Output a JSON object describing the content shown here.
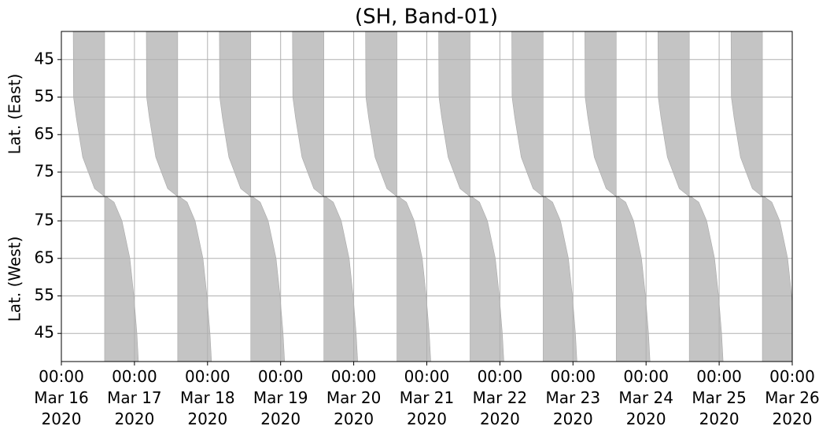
{
  "chart_data": {
    "type": "area",
    "title": "(SH, Band-01)",
    "color": "#c4c4c4",
    "grid": true,
    "xlim": [
      "2020-03-16T00:00",
      "2020-03-26T00:00"
    ],
    "xticks": [
      {
        "value": "2020-03-16T00:00",
        "label": "00:00\nMar 16\n2020"
      },
      {
        "value": "2020-03-17T00:00",
        "label": "00:00\nMar 17\n2020"
      },
      {
        "value": "2020-03-18T00:00",
        "label": "00:00\nMar 18\n2020"
      },
      {
        "value": "2020-03-19T00:00",
        "label": "00:00\nMar 19\n2020"
      },
      {
        "value": "2020-03-20T00:00",
        "label": "00:00\nMar 20\n2020"
      },
      {
        "value": "2020-03-21T00:00",
        "label": "00:00\nMar 21\n2020"
      },
      {
        "value": "2020-03-22T00:00",
        "label": "00:00\nMar 22\n2020"
      },
      {
        "value": "2020-03-23T00:00",
        "label": "00:00\nMar 23\n2020"
      },
      {
        "value": "2020-03-24T00:00",
        "label": "00:00\nMar 24\n2020"
      },
      {
        "value": "2020-03-25T00:00",
        "label": "00:00\nMar 25\n2020"
      },
      {
        "value": "2020-03-26T00:00",
        "label": "00:00\nMar 26\n2020"
      }
    ],
    "panels": [
      {
        "ylabel": "Lat. (East)",
        "ylim": [
          37.5,
          81.5
        ],
        "yticks": [
          45,
          55,
          65,
          75
        ],
        "hours": [
          3.9,
          4.0,
          4.9,
          7.0,
          10.9,
          13.4,
          14.2,
          14.2
        ],
        "lat": [
          37.5,
          55,
          60.5,
          71,
          79.4,
          81,
          81.5,
          37.5
        ],
        "days": [
          "2020-03-16T00:00",
          "2020-03-17T00:00",
          "2020-03-18T00:00",
          "2020-03-19T00:00",
          "2020-03-20T00:00",
          "2020-03-21T00:00",
          "2020-03-22T00:00",
          "2020-03-23T00:00",
          "2020-03-24T00:00",
          "2020-03-25T00:00"
        ]
      },
      {
        "ylabel": "Lat. (West)",
        "ylim": [
          81.5,
          37.5
        ],
        "yticks": [
          75,
          65,
          55,
          45
        ],
        "hours": [
          14.2,
          14.7,
          17.3,
          19.9,
          22.5,
          23.8,
          24.8,
          25.3,
          14.2
        ],
        "lat": [
          81.5,
          81.5,
          80,
          75,
          65,
          55,
          45,
          37.5,
          37.5
        ],
        "days": [
          "2020-03-16T00:00",
          "2020-03-17T00:00",
          "2020-03-18T00:00",
          "2020-03-19T00:00",
          "2020-03-20T00:00",
          "2020-03-21T00:00",
          "2020-03-22T00:00",
          "2020-03-23T00:00",
          "2020-03-24T00:00",
          "2020-03-25T00:00"
        ]
      }
    ]
  }
}
